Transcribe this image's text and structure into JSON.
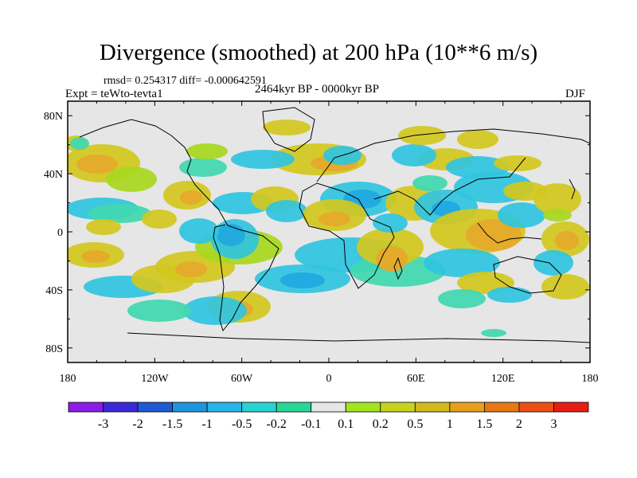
{
  "title": "Divergence (smoothed) at 200 hPa (10**6 m/s)",
  "stats": "rmsd= 0.254317 diff= -0.000642591",
  "experiment": "Expt = teWto-tevta1",
  "period": "2464kyr BP - 0000kyr BP",
  "season": "DJF",
  "map": {
    "projection": "cylindrical-equidistant",
    "lon_range": [
      -180,
      180
    ],
    "lat_range": [
      -90,
      90
    ],
    "background_color": "#e6e6e6",
    "y_ticks": [
      {
        "lat": 80,
        "label": "80N"
      },
      {
        "lat": 40,
        "label": "40N"
      },
      {
        "lat": 0,
        "label": "0"
      },
      {
        "lat": -40,
        "label": "40S"
      },
      {
        "lat": -80,
        "label": "80S"
      }
    ],
    "x_ticks": [
      {
        "lon": -180,
        "label": "180"
      },
      {
        "lon": -120,
        "label": "120W"
      },
      {
        "lon": -60,
        "label": "60W"
      },
      {
        "lon": 0,
        "label": "0"
      },
      {
        "lon": 60,
        "label": "60E"
      },
      {
        "lon": 120,
        "label": "120E"
      },
      {
        "lon": 180,
        "label": "180"
      }
    ]
  },
  "colorbar": {
    "colors": [
      "#8a1ee6",
      "#3c28d7",
      "#1e5ad2",
      "#1e96dc",
      "#28b4e6",
      "#28d2d2",
      "#28d796",
      "#e6e6e6",
      "#a0e61e",
      "#c8d21e",
      "#d2b91e",
      "#e6a01e",
      "#e67814",
      "#eb5014",
      "#e61e14"
    ],
    "labels": [
      "-3",
      "-2",
      "-1.5",
      "-1",
      "-0.5",
      "-0.2",
      "-0.1",
      "0.1",
      "0.2",
      "0.5",
      "1",
      "1.5",
      "2",
      "3"
    ]
  },
  "field_colors": {
    "pos_low": "#a8d820",
    "pos_mid": "#d2c81e",
    "pos_high": "#e6a82a",
    "neg_low": "#40d8b0",
    "neg_mid": "#30c4e0",
    "neg_high": "#20a8e0"
  }
}
